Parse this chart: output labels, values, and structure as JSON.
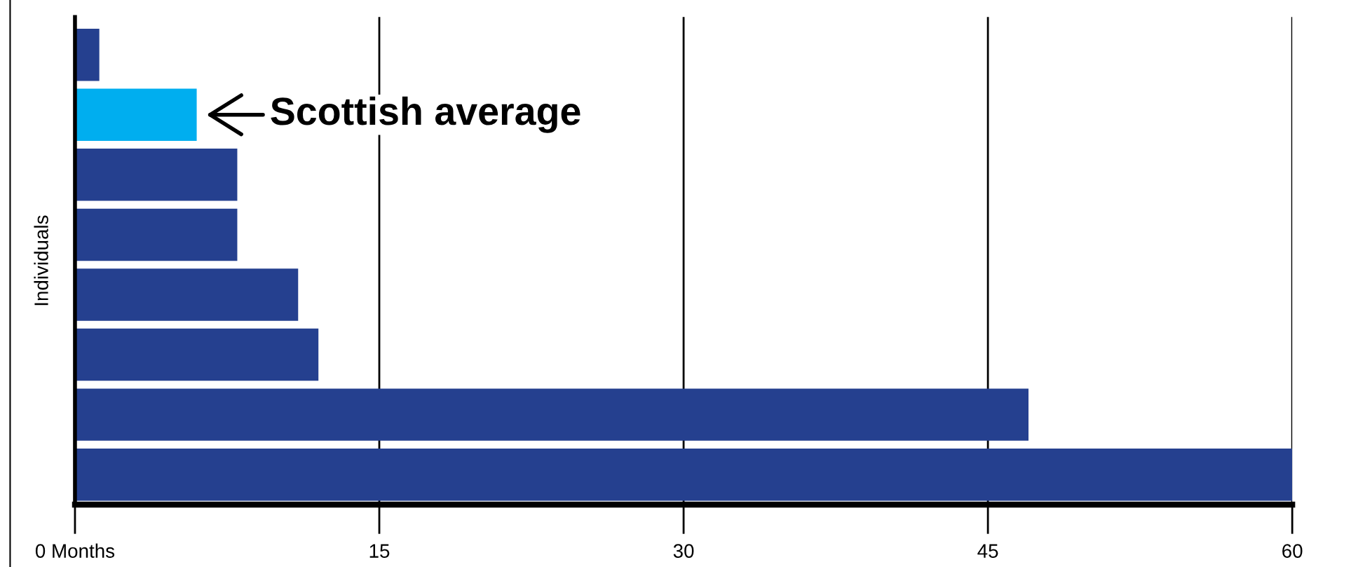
{
  "chart_data": {
    "type": "bar",
    "orientation": "horizontal",
    "ylabel": "Individuals",
    "categories": [
      null,
      null,
      null,
      null,
      null,
      null,
      null,
      null
    ],
    "values": [
      1.2,
      6,
      8,
      8,
      11,
      12,
      47,
      60
    ],
    "colors": [
      "#25408f",
      "#00aeef",
      "#25408f",
      "#25408f",
      "#25408f",
      "#25408f",
      "#25408f",
      "#25408f"
    ],
    "xlim": [
      0,
      60
    ],
    "xticks": [
      {
        "value": 0,
        "label": "0 Months"
      },
      15,
      30,
      45,
      60
    ],
    "grid": "x",
    "annotations": [
      {
        "text": "Scottish average",
        "x": 6
      }
    ]
  }
}
